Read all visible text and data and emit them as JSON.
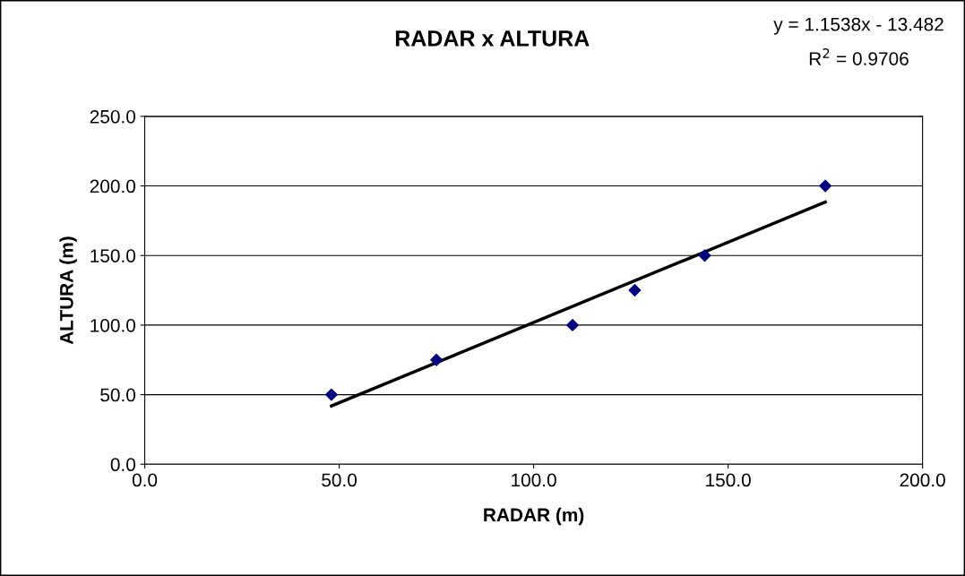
{
  "chart_data": {
    "type": "scatter",
    "title": "RADAR x ALTURA",
    "xlabel": "RADAR (m)",
    "ylabel": "ALTURA (m)",
    "annotations": [
      "y = 1.1538x - 13.482",
      "R$^{2}$ = 0.9706"
    ],
    "x": [
      48,
      75,
      110,
      126,
      144,
      175
    ],
    "series": [
      {
        "color": "#000080",
        "marker": "diamond",
        "values": [
          50,
          75,
          100,
          125,
          150,
          200
        ]
      },
      {
        "type": "line",
        "color": "#000000",
        "marker": "none",
        "x": [
          48,
          175
        ],
        "values": [
          41.9,
          188.4
        ]
      }
    ],
    "xlim": [
      0,
      200
    ],
    "xticks": [
      {
        "value": 0,
        "label": "0.0"
      },
      {
        "value": 50,
        "label": "50.0"
      },
      {
        "value": 100,
        "label": "100.0"
      },
      {
        "value": 150,
        "label": "150.0"
      },
      {
        "value": 200,
        "label": "200.0"
      }
    ],
    "ylim": [
      0,
      250
    ],
    "yticks": [
      {
        "value": 0,
        "label": "0.0"
      },
      {
        "value": 50,
        "label": "50.0"
      },
      {
        "value": 100,
        "label": "100.0"
      },
      {
        "value": 150,
        "label": "150.0"
      },
      {
        "value": 200,
        "label": "200.0"
      },
      {
        "value": 250,
        "label": "250.0"
      }
    ],
    "grid": "y",
    "legend": false
  }
}
